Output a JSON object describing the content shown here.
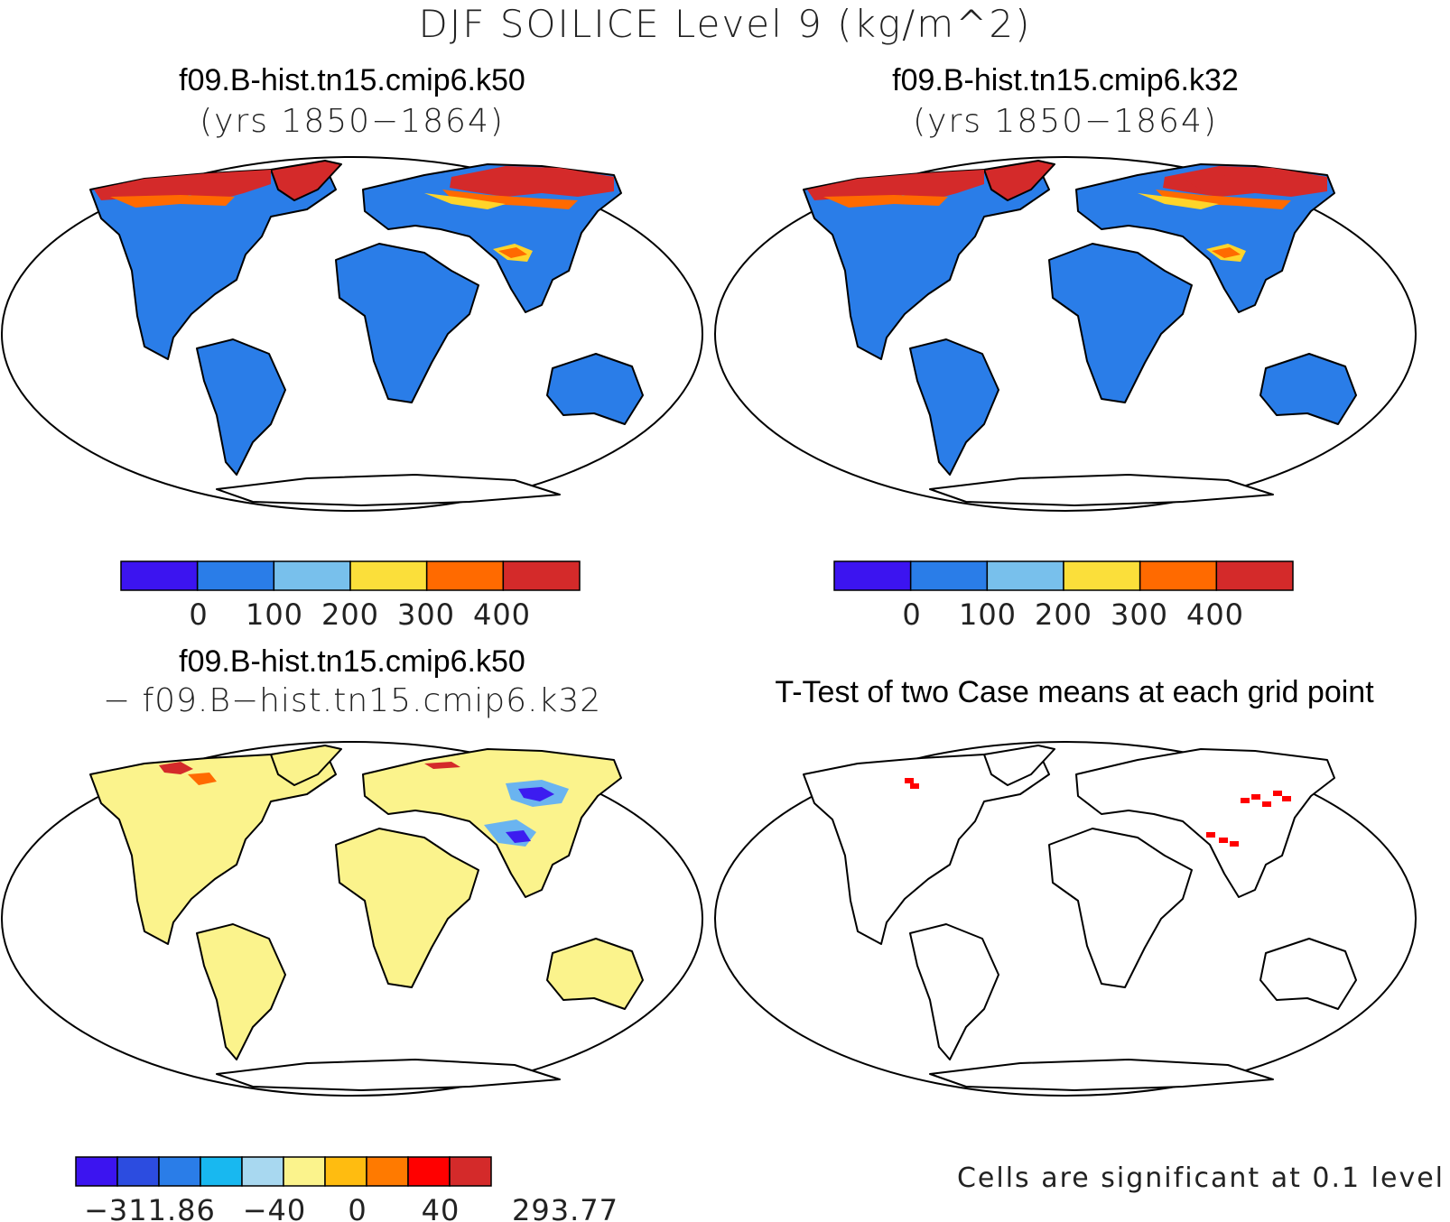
{
  "title": "DJF SOILICE Level 9 (kg/m^2)",
  "panels": {
    "top_left": {
      "case": "f09.B-hist.tn15.cmip6.k50",
      "years": "(yrs 1850−1864)"
    },
    "top_right": {
      "case": "f09.B-hist.tn15.cmip6.k32",
      "years": "(yrs 1850−1864)"
    },
    "bottom_left": {
      "case": "f09.B-hist.tn15.cmip6.k50",
      "subtract": "− f09.B−hist.tn15.cmip6.k32"
    },
    "bottom_right": {
      "title": "T-Test of two Case means at each grid point",
      "note": "Cells are significant at 0.1 level"
    }
  },
  "colors": {
    "land_case": "#2a7de8",
    "land_diff": "#fbf38c",
    "high": "#d42a2a",
    "mid": "#ff6a00",
    "low": "#ffd42a",
    "sig": "#ff0000",
    "diff_neg": "#3c1cf0",
    "diff_neg2": "#6ab4f0"
  },
  "colorbar_case": {
    "colors": [
      "#3c14f0",
      "#2a7de8",
      "#78c0ec",
      "#fbdf3a",
      "#ff6a00",
      "#d42a2a"
    ],
    "labels": [
      "0",
      "100",
      "200",
      "300",
      "400"
    ]
  },
  "colorbar_diff": {
    "colors": [
      "#3c14f0",
      "#2c4ce0",
      "#2a7de8",
      "#18b8f0",
      "#a8d8f0",
      "#fbf38c",
      "#ffbc10",
      "#ff7a00",
      "#ff0000",
      "#d42a2a"
    ],
    "labels": [
      "−311.86",
      "−40",
      "0",
      "40",
      "293.77"
    ]
  }
}
